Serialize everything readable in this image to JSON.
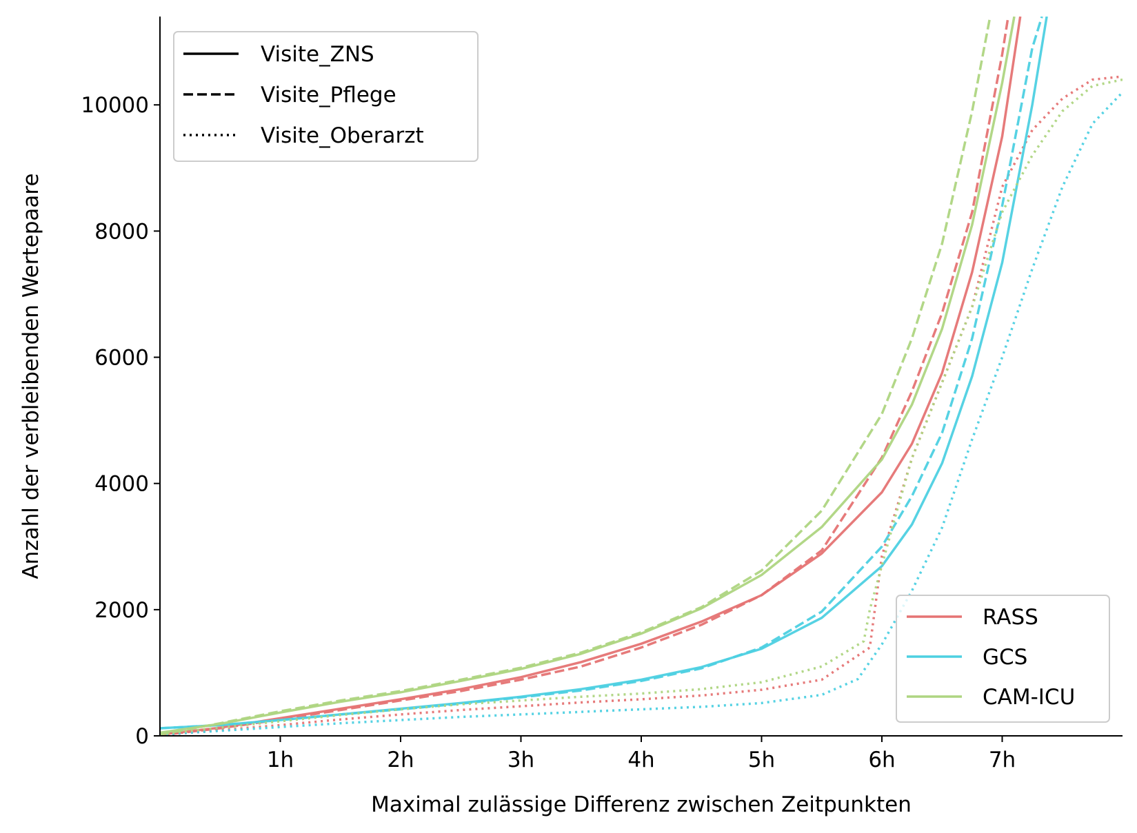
{
  "chart_data": {
    "type": "line",
    "xlabel": "Maximal zulässige Differenz zwischen Zeitpunkten",
    "ylabel": "Anzahl der verbleibenden Wertepaare",
    "xlim": [
      0,
      8
    ],
    "ylim": [
      0,
      11400
    ],
    "x_ticks": [
      {
        "value": 1,
        "label": "1h"
      },
      {
        "value": 2,
        "label": "2h"
      },
      {
        "value": 3,
        "label": "3h"
      },
      {
        "value": 4,
        "label": "4h"
      },
      {
        "value": 5,
        "label": "5h"
      },
      {
        "value": 6,
        "label": "6h"
      },
      {
        "value": 7,
        "label": "7h"
      }
    ],
    "y_ticks": [
      {
        "value": 0,
        "label": "0"
      },
      {
        "value": 2000,
        "label": "2000"
      },
      {
        "value": 4000,
        "label": "4000"
      },
      {
        "value": 6000,
        "label": "6000"
      },
      {
        "value": 8000,
        "label": "8000"
      },
      {
        "value": 10000,
        "label": "10000"
      }
    ],
    "grid": false,
    "style_legend": {
      "placement": "top-left",
      "entries": [
        {
          "label": "Visite_ZNS",
          "dash": "solid"
        },
        {
          "label": "Visite_Pflege",
          "dash": "dashed"
        },
        {
          "label": "Visite_Oberarzt",
          "dash": "dotted"
        }
      ]
    },
    "color_legend": {
      "placement": "bottom-right",
      "entries": [
        {
          "label": "RASS",
          "color": "#e57373"
        },
        {
          "label": "GCS",
          "color": "#4dd0e1"
        },
        {
          "label": "CAM-ICU",
          "color": "#aed581"
        }
      ]
    },
    "series": [
      {
        "name": "RASS",
        "style": "Visite_ZNS",
        "color": "#e57373",
        "dash": "solid",
        "x": [
          0,
          0.5,
          1,
          1.5,
          2,
          2.5,
          3,
          3.5,
          4,
          4.5,
          5,
          5.5,
          6,
          6.25,
          6.5,
          6.75,
          7,
          7.15
        ],
        "y": [
          20,
          130,
          280,
          430,
          580,
          740,
          930,
          1170,
          1460,
          1810,
          2230,
          2890,
          3860,
          4630,
          5750,
          7350,
          9500,
          11400
        ]
      },
      {
        "name": "RASS",
        "style": "Visite_Pflege",
        "color": "#e57373",
        "dash": "dashed",
        "x": [
          0,
          0.5,
          1,
          1.5,
          2,
          2.5,
          3,
          3.5,
          4,
          4.5,
          5,
          5.5,
          6,
          6.25,
          6.5,
          6.75,
          7,
          7.05
        ],
        "y": [
          10,
          120,
          260,
          410,
          560,
          710,
          890,
          1100,
          1400,
          1760,
          2230,
          2940,
          4410,
          5460,
          6700,
          8300,
          10800,
          11400
        ]
      },
      {
        "name": "RASS",
        "style": "Visite_Oberarzt",
        "color": "#e57373",
        "dash": "dotted",
        "x": [
          0,
          0.5,
          1,
          1.5,
          2,
          2.5,
          3,
          3.5,
          4,
          4.5,
          5,
          5.5,
          5.9,
          6.0,
          6.25,
          6.5,
          6.75,
          7.0,
          7.25,
          7.5,
          7.75,
          8.0
        ],
        "y": [
          10,
          90,
          170,
          260,
          340,
          410,
          470,
          530,
          580,
          640,
          730,
          890,
          1400,
          2850,
          4400,
          5600,
          6800,
          8700,
          9600,
          10100,
          10400,
          10450
        ]
      },
      {
        "name": "GCS",
        "style": "Visite_ZNS",
        "color": "#4dd0e1",
        "dash": "solid",
        "x": [
          0,
          0.5,
          1,
          1.5,
          2,
          2.5,
          3,
          3.5,
          4,
          4.5,
          5,
          5.5,
          6,
          6.25,
          6.5,
          6.75,
          7,
          7.25,
          7.37
        ],
        "y": [
          120,
          170,
          250,
          340,
          430,
          520,
          620,
          740,
          890,
          1090,
          1380,
          1870,
          2690,
          3350,
          4320,
          5700,
          7500,
          10000,
          11400
        ]
      },
      {
        "name": "GCS",
        "style": "Visite_Pflege",
        "color": "#4dd0e1",
        "dash": "dashed",
        "x": [
          0,
          0.5,
          1,
          1.5,
          2,
          2.5,
          3,
          3.5,
          4,
          4.5,
          5,
          5.5,
          6,
          6.25,
          6.5,
          6.75,
          7,
          7.25,
          7.33
        ],
        "y": [
          120,
          170,
          250,
          340,
          420,
          510,
          610,
          720,
          870,
          1070,
          1400,
          1970,
          3000,
          3800,
          4800,
          6300,
          8400,
          10900,
          11400
        ]
      },
      {
        "name": "GCS",
        "style": "Visite_Oberarzt",
        "color": "#4dd0e1",
        "dash": "dotted",
        "x": [
          0,
          0.5,
          1,
          1.5,
          2,
          2.5,
          3,
          3.5,
          4,
          4.5,
          5,
          5.5,
          5.8,
          6.0,
          6.25,
          6.5,
          6.75,
          7.0,
          7.25,
          7.5,
          7.75,
          8.0
        ],
        "y": [
          20,
          80,
          140,
          200,
          250,
          300,
          340,
          380,
          420,
          460,
          520,
          650,
          900,
          1450,
          2300,
          3300,
          4700,
          6000,
          7400,
          8700,
          9700,
          10200
        ]
      },
      {
        "name": "CAM-ICU",
        "style": "Visite_ZNS",
        "color": "#aed581",
        "dash": "solid",
        "x": [
          0,
          0.5,
          1,
          1.5,
          2,
          2.5,
          3,
          3.5,
          4,
          4.5,
          5,
          5.5,
          6,
          6.25,
          6.5,
          6.75,
          7,
          7.1
        ],
        "y": [
          50,
          190,
          370,
          540,
          690,
          870,
          1060,
          1300,
          1620,
          2020,
          2550,
          3310,
          4380,
          5250,
          6450,
          8100,
          10350,
          11400
        ]
      },
      {
        "name": "CAM-ICU",
        "style": "Visite_Pflege",
        "color": "#aed581",
        "dash": "dashed",
        "x": [
          0,
          0.5,
          1,
          1.5,
          2,
          2.5,
          3,
          3.5,
          4,
          4.5,
          5,
          5.5,
          6,
          6.25,
          6.5,
          6.75,
          6.9
        ],
        "y": [
          20,
          200,
          390,
          560,
          710,
          890,
          1080,
          1320,
          1640,
          2040,
          2620,
          3570,
          5100,
          6300,
          7800,
          9900,
          11400
        ]
      },
      {
        "name": "CAM-ICU",
        "style": "Visite_Oberarzt",
        "color": "#aed581",
        "dash": "dotted",
        "x": [
          0,
          0.5,
          1,
          1.5,
          2,
          2.5,
          3,
          3.5,
          4,
          4.5,
          5,
          5.5,
          5.85,
          5.9,
          6.1,
          6.25,
          6.5,
          6.75,
          7.0,
          7.25,
          7.5,
          7.75,
          8.0
        ],
        "y": [
          30,
          130,
          230,
          330,
          420,
          500,
          560,
          620,
          670,
          740,
          850,
          1100,
          1500,
          2000,
          3400,
          4400,
          5600,
          6800,
          8300,
          9200,
          9900,
          10300,
          10400
        ]
      }
    ]
  }
}
